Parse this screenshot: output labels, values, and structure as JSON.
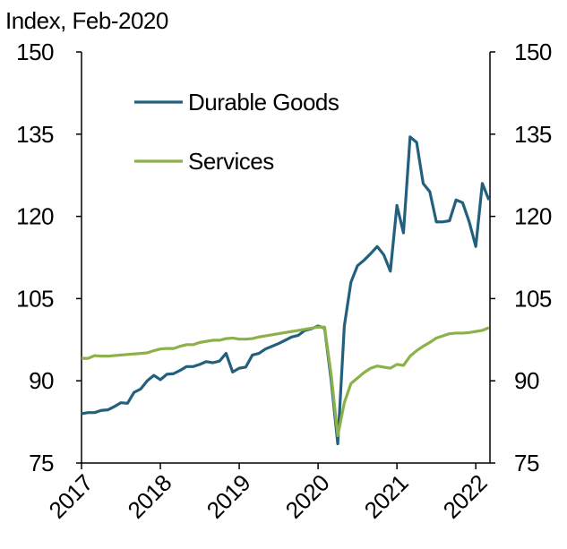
{
  "chart_data": {
    "type": "line",
    "title": "Index, Feb-2020",
    "x": [
      2017,
      2017.083,
      2017.167,
      2017.25,
      2017.333,
      2017.417,
      2017.5,
      2017.583,
      2017.667,
      2017.75,
      2017.833,
      2017.917,
      2018,
      2018.083,
      2018.167,
      2018.25,
      2018.333,
      2018.417,
      2018.5,
      2018.583,
      2018.667,
      2018.75,
      2018.833,
      2018.917,
      2019,
      2019.083,
      2019.167,
      2019.25,
      2019.333,
      2019.417,
      2019.5,
      2019.583,
      2019.667,
      2019.75,
      2019.833,
      2019.917,
      2020,
      2020.083,
      2020.167,
      2020.25,
      2020.333,
      2020.417,
      2020.5,
      2020.583,
      2020.667,
      2020.75,
      2020.833,
      2020.917,
      2021,
      2021.083,
      2021.167,
      2021.25,
      2021.333,
      2021.417,
      2021.5,
      2021.583,
      2021.667,
      2021.75,
      2021.833,
      2021.917,
      2022,
      2022.083,
      2022.167
    ],
    "series": [
      {
        "name": "Durable Goods",
        "color": "#22607e",
        "values": [
          84.0,
          84.2,
          84.2,
          84.6,
          84.7,
          85.3,
          86.0,
          85.9,
          87.9,
          88.5,
          90.0,
          91.0,
          90.2,
          91.2,
          91.3,
          91.9,
          92.6,
          92.6,
          93.0,
          93.5,
          93.3,
          93.6,
          95.0,
          91.6,
          92.3,
          92.5,
          94.7,
          95.0,
          95.8,
          96.3,
          96.8,
          97.4,
          98.0,
          98.3,
          99.2,
          99.5,
          100.0,
          99.6,
          90.0,
          78.5,
          100.0,
          108.0,
          111.0,
          112.0,
          113.2,
          114.5,
          113.0,
          110.0,
          122.0,
          117.0,
          134.5,
          133.5,
          126.0,
          124.5,
          119.0,
          119.0,
          119.2,
          123.0,
          122.5,
          119.0,
          114.5,
          126.0,
          123.0
        ]
      },
      {
        "name": "Services",
        "color": "#8db14a",
        "values": [
          94.1,
          94.1,
          94.6,
          94.5,
          94.5,
          94.6,
          94.7,
          94.8,
          94.9,
          95.0,
          95.1,
          95.5,
          95.8,
          95.9,
          95.9,
          96.3,
          96.6,
          96.6,
          97.0,
          97.2,
          97.4,
          97.4,
          97.7,
          97.8,
          97.6,
          97.6,
          97.7,
          98.0,
          98.2,
          98.4,
          98.6,
          98.8,
          99.0,
          99.2,
          99.4,
          99.6,
          99.8,
          99.8,
          91.0,
          80.0,
          86.0,
          89.5,
          90.5,
          91.5,
          92.3,
          92.7,
          92.5,
          92.3,
          93.0,
          92.8,
          94.5,
          95.5,
          96.3,
          97.0,
          97.8,
          98.2,
          98.6,
          98.7,
          98.7,
          98.8,
          99.0,
          99.2,
          99.7
        ]
      }
    ],
    "xlim": [
      2017,
      2022.18
    ],
    "xticks": [
      2017,
      2018,
      2019,
      2020,
      2021,
      2022
    ],
    "ylim": [
      75,
      150
    ],
    "yticks": [
      75,
      90,
      105,
      120,
      135,
      150
    ],
    "y2lim": [
      75,
      150
    ],
    "y2ticks": [
      75,
      90,
      105,
      120,
      135,
      150
    ],
    "legend": "upper left",
    "grid": false
  }
}
